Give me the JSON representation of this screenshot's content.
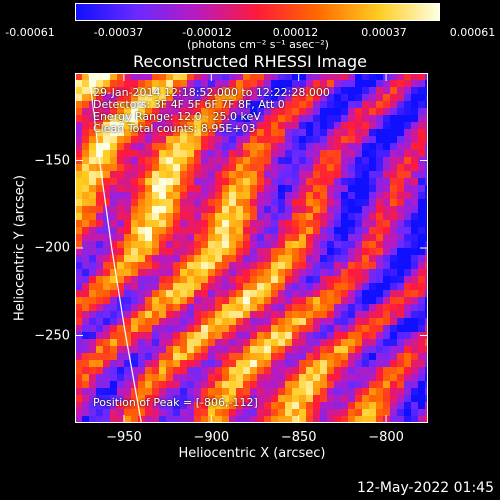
{
  "colorbar": {
    "ticks": [
      "-0.00061",
      "-0.00037",
      "-0.00012",
      "0.00012",
      "0.00037",
      "0.00061"
    ],
    "unit": "(photons cm⁻² s⁻¹ asec⁻²)",
    "colors": [
      "#1010ff",
      "#6a2aff",
      "#b81ac0",
      "#ff1a3a",
      "#ff6a00",
      "#ffcc20",
      "#ffffe0"
    ]
  },
  "chart_data": {
    "type": "heatmap",
    "title": "Reconstructed RHESSI Image",
    "xlabel": "Heliocentric X (arcsec)",
    "ylabel": "Heliocentric Y (arcsec)",
    "xlim": [
      -978,
      -776
    ],
    "ylim": [
      -300,
      -100
    ],
    "x_ticks": [
      -950,
      -900,
      -850,
      -800
    ],
    "x_tick_labels": [
      "−950",
      "−900",
      "−850",
      "−800"
    ],
    "y_ticks": [
      -150,
      -200,
      -250
    ],
    "y_tick_labels": [
      "−150",
      "−200",
      "−250"
    ],
    "value_range": [
      -0.00061,
      0.00061
    ],
    "peak": [
      -806,
      -112
    ],
    "limb_curve": [
      [
        -970,
        -100
      ],
      [
        -964,
        -150
      ],
      [
        -957,
        -200
      ],
      [
        -949,
        -250
      ],
      [
        -940,
        -300
      ]
    ]
  },
  "annotations": {
    "time_range": "29-Jan-2014 12:18:52.000 to 12:22:28.000",
    "detectors": "Detectors: 3F 4F 5F 6F 7F 8F, Att 0",
    "energy": "Energy Range: 12.0 - 25.0 keV",
    "clean": "Clean    Total counts: 8.95E+03",
    "peak": "Position of Peak = [-806,-112]"
  },
  "timestamp": "12-May-2022 01:45"
}
